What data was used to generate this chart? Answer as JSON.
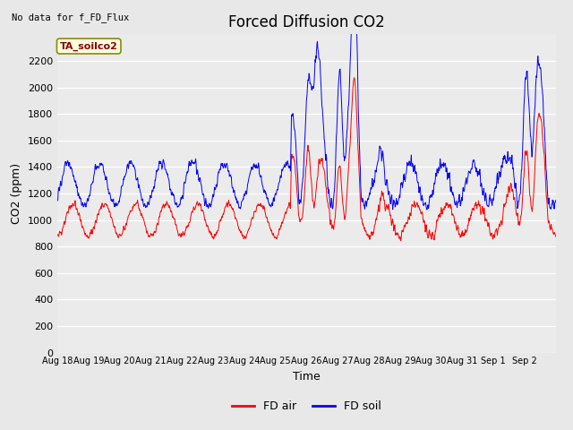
{
  "title": "Forced Diffusion CO2",
  "xlabel": "Time",
  "ylabel": "CO2 (ppm)",
  "top_left_text": "No data for f_FD_Flux",
  "annotation_text": "TA_soilco2",
  "ylim": [
    0,
    2400
  ],
  "yticks": [
    0,
    200,
    400,
    600,
    800,
    1000,
    1200,
    1400,
    1600,
    1800,
    2000,
    2200
  ],
  "x_labels": [
    "Aug 18",
    "Aug 19",
    "Aug 20",
    "Aug 21",
    "Aug 22",
    "Aug 23",
    "Aug 24",
    "Aug 25",
    "Aug 26",
    "Aug 27",
    "Aug 28",
    "Aug 29",
    "Aug 30",
    "Aug 31",
    "Sep 1",
    "Sep 2"
  ],
  "fd_air_color": "#ff0000",
  "fd_soil_color": "#0000ff",
  "background_color": "#e8e8e8",
  "plot_bg_color": "#ebebeb",
  "legend_labels": [
    "FD air",
    "FD soil"
  ],
  "title_fontsize": 12,
  "axis_label_fontsize": 9,
  "tick_fontsize": 8,
  "n_days": 16,
  "pts_per_day": 96
}
